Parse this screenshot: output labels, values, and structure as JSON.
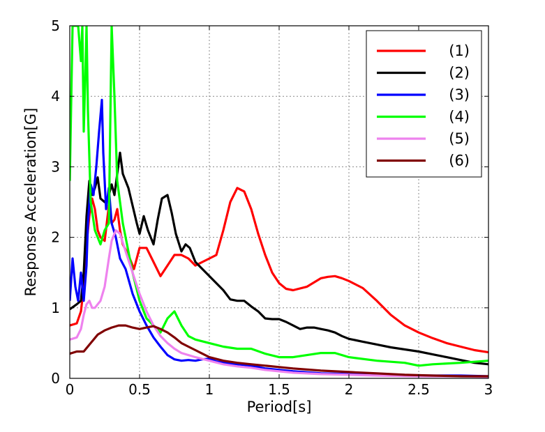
{
  "chart_data": {
    "type": "line",
    "title": "",
    "xlabel": "Period[s]",
    "ylabel": "Response Acceleration[G]",
    "xlim": [
      0,
      3
    ],
    "ylim": [
      0,
      5
    ],
    "xticks": [
      0,
      0.5,
      1,
      1.5,
      2,
      2.5,
      3
    ],
    "xtick_labels": [
      "0",
      "0.5",
      "1",
      "1.5",
      "2",
      "2.5",
      "3"
    ],
    "yticks": [
      0,
      1,
      2,
      3,
      4,
      5
    ],
    "ytick_labels": [
      "0",
      "1",
      "2",
      "3",
      "4",
      "5"
    ],
    "grid": true,
    "legend_position": "top-right",
    "series": [
      {
        "name": "(1)",
        "color": "#ff0000",
        "x": [
          0,
          0.05,
          0.08,
          0.1,
          0.12,
          0.14,
          0.16,
          0.18,
          0.2,
          0.22,
          0.25,
          0.28,
          0.3,
          0.32,
          0.34,
          0.36,
          0.38,
          0.42,
          0.46,
          0.5,
          0.55,
          0.6,
          0.65,
          0.7,
          0.75,
          0.8,
          0.85,
          0.9,
          0.95,
          1.0,
          1.05,
          1.1,
          1.15,
          1.2,
          1.25,
          1.3,
          1.35,
          1.4,
          1.45,
          1.5,
          1.55,
          1.6,
          1.7,
          1.8,
          1.85,
          1.9,
          1.95,
          2.0,
          2.1,
          2.2,
          2.3,
          2.4,
          2.5,
          2.6,
          2.7,
          2.8,
          2.9,
          3.0
        ],
        "y": [
          0.75,
          0.78,
          0.95,
          1.3,
          1.9,
          2.3,
          2.55,
          2.4,
          2.1,
          2.0,
          1.95,
          2.45,
          2.2,
          2.25,
          2.4,
          2.1,
          1.9,
          1.75,
          1.55,
          1.85,
          1.85,
          1.65,
          1.45,
          1.6,
          1.75,
          1.75,
          1.7,
          1.6,
          1.65,
          1.7,
          1.75,
          2.1,
          2.5,
          2.7,
          2.65,
          2.4,
          2.05,
          1.75,
          1.5,
          1.35,
          1.27,
          1.25,
          1.3,
          1.42,
          1.44,
          1.45,
          1.42,
          1.38,
          1.28,
          1.1,
          0.9,
          0.75,
          0.65,
          0.57,
          0.5,
          0.45,
          0.4,
          0.37
        ]
      },
      {
        "name": "(2)",
        "color": "#000000",
        "x": [
          0,
          0.05,
          0.08,
          0.1,
          0.12,
          0.14,
          0.16,
          0.18,
          0.2,
          0.22,
          0.25,
          0.28,
          0.3,
          0.32,
          0.34,
          0.36,
          0.38,
          0.4,
          0.42,
          0.45,
          0.48,
          0.5,
          0.53,
          0.56,
          0.6,
          0.63,
          0.66,
          0.7,
          0.73,
          0.76,
          0.8,
          0.83,
          0.86,
          0.9,
          0.95,
          1.0,
          1.05,
          1.1,
          1.15,
          1.2,
          1.25,
          1.3,
          1.35,
          1.4,
          1.45,
          1.5,
          1.55,
          1.6,
          1.65,
          1.7,
          1.75,
          1.8,
          1.85,
          1.9,
          1.95,
          2.0,
          2.1,
          2.2,
          2.3,
          2.4,
          2.5,
          2.6,
          2.7,
          2.8,
          2.9,
          3.0
        ],
        "y": [
          0.98,
          1.05,
          1.1,
          1.5,
          2.3,
          2.8,
          2.6,
          2.7,
          2.85,
          2.55,
          2.5,
          2.6,
          2.75,
          2.6,
          2.9,
          3.2,
          2.9,
          2.8,
          2.7,
          2.45,
          2.2,
          2.05,
          2.3,
          2.1,
          1.9,
          2.25,
          2.55,
          2.6,
          2.35,
          2.05,
          1.8,
          1.9,
          1.85,
          1.65,
          1.55,
          1.45,
          1.35,
          1.25,
          1.12,
          1.1,
          1.1,
          1.02,
          0.95,
          0.85,
          0.84,
          0.84,
          0.8,
          0.75,
          0.7,
          0.72,
          0.72,
          0.7,
          0.68,
          0.65,
          0.6,
          0.56,
          0.52,
          0.48,
          0.44,
          0.41,
          0.38,
          0.34,
          0.3,
          0.26,
          0.22,
          0.2
        ]
      },
      {
        "name": "(3)",
        "color": "#0000ff",
        "x": [
          0,
          0.02,
          0.04,
          0.06,
          0.08,
          0.1,
          0.12,
          0.13,
          0.15,
          0.17,
          0.19,
          0.21,
          0.23,
          0.24,
          0.26,
          0.28,
          0.3,
          0.33,
          0.36,
          0.4,
          0.45,
          0.5,
          0.55,
          0.6,
          0.65,
          0.7,
          0.75,
          0.8,
          0.85,
          0.9,
          0.95,
          1.0,
          1.05,
          1.1,
          1.2,
          1.3,
          1.4,
          1.5,
          1.6,
          1.8,
          2.0,
          2.2,
          2.5,
          2.8,
          3.0
        ],
        "y": [
          1.1,
          1.7,
          1.3,
          1.1,
          1.5,
          1.1,
          1.6,
          2.2,
          2.75,
          2.6,
          3.0,
          3.5,
          3.95,
          3.2,
          2.4,
          2.7,
          2.2,
          2.0,
          1.7,
          1.55,
          1.2,
          0.95,
          0.75,
          0.58,
          0.45,
          0.33,
          0.27,
          0.25,
          0.26,
          0.25,
          0.27,
          0.28,
          0.24,
          0.22,
          0.2,
          0.18,
          0.14,
          0.12,
          0.1,
          0.07,
          0.06,
          0.05,
          0.04,
          0.04,
          0.03
        ]
      },
      {
        "name": "(4)",
        "color": "#00ff00",
        "x": [
          0,
          0.02,
          0.04,
          0.06,
          0.08,
          0.09,
          0.1,
          0.11,
          0.12,
          0.13,
          0.15,
          0.18,
          0.2,
          0.22,
          0.25,
          0.28,
          0.3,
          0.32,
          0.34,
          0.36,
          0.38,
          0.4,
          0.45,
          0.5,
          0.55,
          0.6,
          0.65,
          0.7,
          0.75,
          0.8,
          0.85,
          0.9,
          1.0,
          1.1,
          1.2,
          1.3,
          1.4,
          1.5,
          1.6,
          1.7,
          1.8,
          1.9,
          2.0,
          2.2,
          2.4,
          2.5,
          2.6,
          2.8,
          3.0
        ],
        "y": [
          2.8,
          5.0,
          5.0,
          5.0,
          4.5,
          5.0,
          3.5,
          4.2,
          5.0,
          3.8,
          2.5,
          2.1,
          2.0,
          1.9,
          2.1,
          2.2,
          5.0,
          4.0,
          2.8,
          2.5,
          2.2,
          2.0,
          1.5,
          1.1,
          0.85,
          0.75,
          0.65,
          0.85,
          0.95,
          0.75,
          0.6,
          0.55,
          0.5,
          0.45,
          0.42,
          0.42,
          0.35,
          0.3,
          0.3,
          0.33,
          0.36,
          0.36,
          0.3,
          0.25,
          0.22,
          0.18,
          0.2,
          0.22,
          0.25
        ]
      },
      {
        "name": "(5)",
        "color": "#ee82ee",
        "x": [
          0,
          0.05,
          0.08,
          0.1,
          0.12,
          0.14,
          0.16,
          0.18,
          0.2,
          0.22,
          0.25,
          0.28,
          0.3,
          0.33,
          0.36,
          0.4,
          0.45,
          0.5,
          0.55,
          0.6,
          0.65,
          0.7,
          0.75,
          0.8,
          0.9,
          1.0,
          1.1,
          1.2,
          1.3,
          1.4,
          1.5,
          1.6,
          1.8,
          2.0,
          2.2,
          2.5,
          2.8,
          3.0
        ],
        "y": [
          0.55,
          0.58,
          0.7,
          0.9,
          1.05,
          1.1,
          1.0,
          1.0,
          1.05,
          1.1,
          1.3,
          1.7,
          1.95,
          2.1,
          2.05,
          1.8,
          1.5,
          1.2,
          0.95,
          0.75,
          0.6,
          0.5,
          0.42,
          0.36,
          0.3,
          0.25,
          0.2,
          0.17,
          0.15,
          0.12,
          0.1,
          0.08,
          0.06,
          0.05,
          0.04,
          0.03,
          0.03,
          0.02
        ]
      },
      {
        "name": "(6)",
        "color": "#800000",
        "x": [
          0,
          0.05,
          0.1,
          0.15,
          0.2,
          0.25,
          0.3,
          0.35,
          0.4,
          0.45,
          0.5,
          0.55,
          0.6,
          0.65,
          0.7,
          0.75,
          0.8,
          0.85,
          0.9,
          0.95,
          1.0,
          1.1,
          1.2,
          1.3,
          1.4,
          1.5,
          1.6,
          1.8,
          2.0,
          2.2,
          2.4,
          2.6,
          2.8,
          3.0
        ],
        "y": [
          0.35,
          0.38,
          0.38,
          0.5,
          0.62,
          0.68,
          0.72,
          0.75,
          0.75,
          0.72,
          0.7,
          0.72,
          0.74,
          0.7,
          0.65,
          0.58,
          0.5,
          0.45,
          0.4,
          0.35,
          0.3,
          0.25,
          0.22,
          0.2,
          0.18,
          0.16,
          0.14,
          0.11,
          0.09,
          0.07,
          0.05,
          0.04,
          0.03,
          0.03
        ]
      }
    ]
  }
}
